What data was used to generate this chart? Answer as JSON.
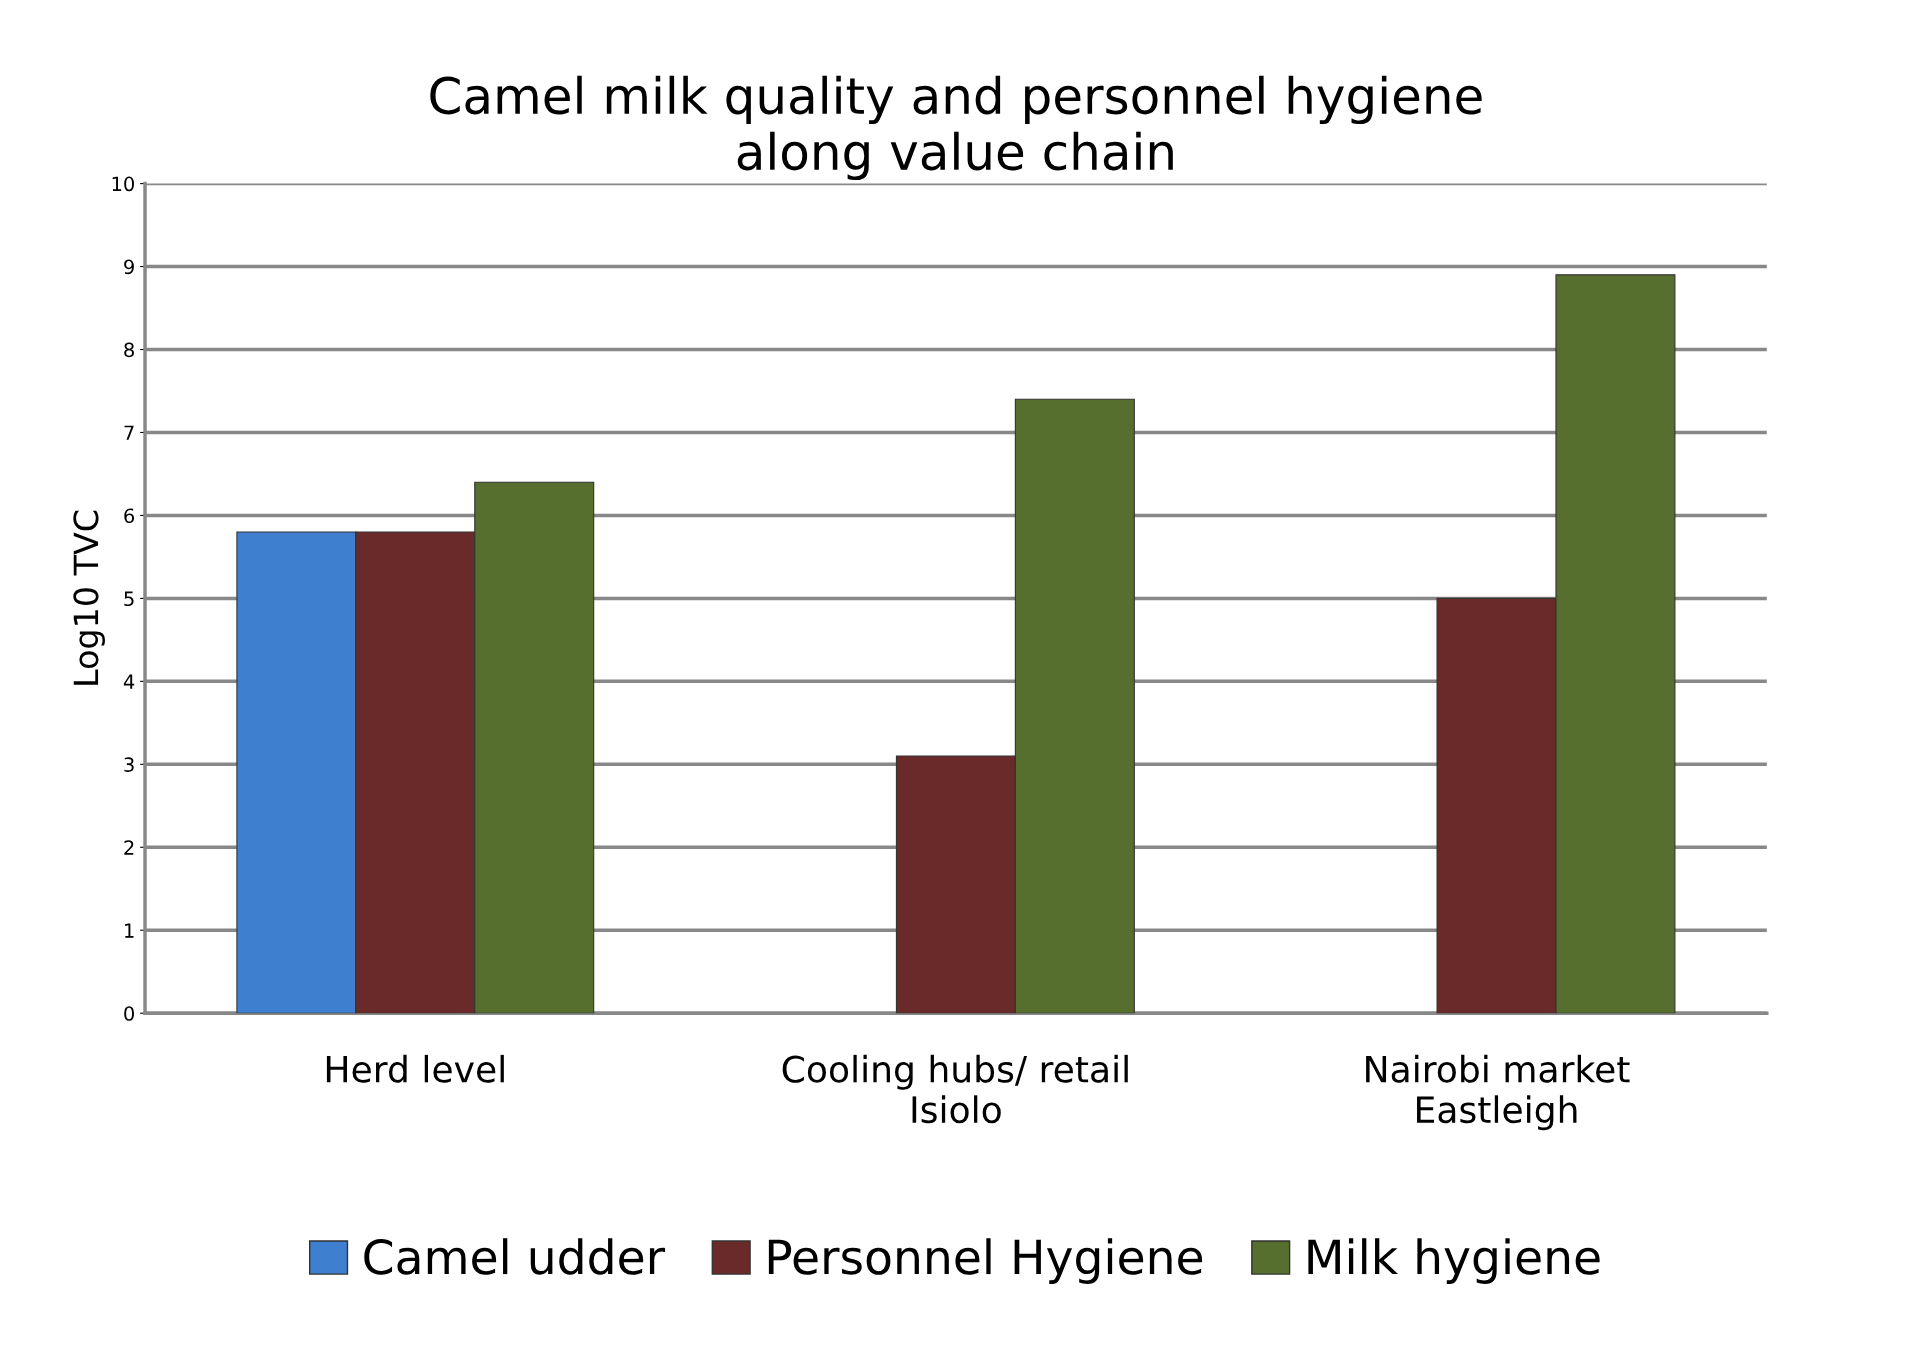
{
  "chart_data": {
    "type": "bar",
    "title": "Camel milk quality and personnel hygiene\nalong value chain",
    "ylabel": "Log10 TVC",
    "categories": [
      "Herd level",
      "Cooling hubs/ retail\nIsiolo",
      "Nairobi market\nEastleigh"
    ],
    "series": [
      {
        "name": "Camel udder",
        "color": "#3f7fd0",
        "values": [
          5.8,
          null,
          null
        ]
      },
      {
        "name": "Personnel Hygiene",
        "color": "#6b2a2a",
        "values": [
          5.8,
          3.1,
          5.0
        ]
      },
      {
        "name": "Milk hygiene",
        "color": "#566f2e",
        "values": [
          6.4,
          7.4,
          8.9
        ]
      }
    ],
    "ylim": [
      0,
      10
    ],
    "yticks": [
      0,
      1,
      2,
      3,
      4,
      5,
      6,
      7,
      8,
      9,
      10
    ],
    "grid": "y",
    "legend": "bottom"
  }
}
